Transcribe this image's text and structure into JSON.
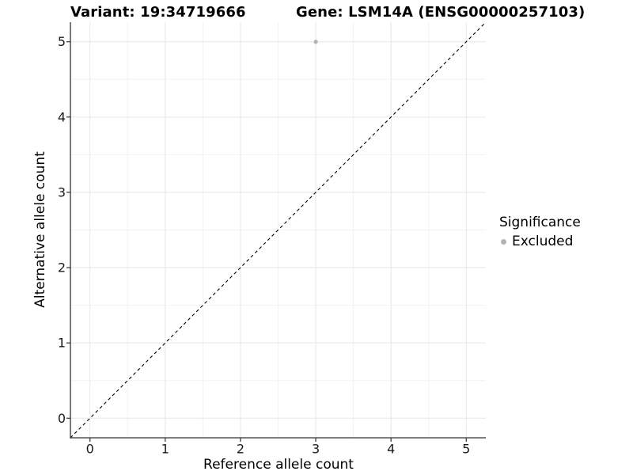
{
  "figure": {
    "titles": {
      "variant": "Variant: 19:34719666",
      "gene": "Gene: LSM14A (ENSG00000257103)"
    }
  },
  "chart_data": {
    "type": "scatter",
    "xlabel": "Reference allele count",
    "ylabel": "Alternative allele count",
    "x_ticks": [
      0,
      1,
      2,
      3,
      4,
      5
    ],
    "y_ticks": [
      0,
      1,
      2,
      3,
      4,
      5
    ],
    "xlim": [
      -0.26,
      5.26
    ],
    "ylim": [
      -0.26,
      5.26
    ],
    "grid": "major+minor",
    "legend_position": "right",
    "series": [
      {
        "name": "Excluded",
        "color": "#b3b3b3",
        "points": [
          {
            "x": 3,
            "y": 5
          }
        ]
      }
    ],
    "reference_line": {
      "type": "identity",
      "style": "dashed",
      "color": "#000000"
    }
  },
  "legend": {
    "title": "Significance",
    "items": [
      {
        "label": "Excluded",
        "color": "#b3b3b3"
      }
    ]
  },
  "colors": {
    "grid_major": "#e6e6e6",
    "grid_minor": "#f2f2f2",
    "axis_line": "#333333",
    "tick_mark": "#333333"
  }
}
